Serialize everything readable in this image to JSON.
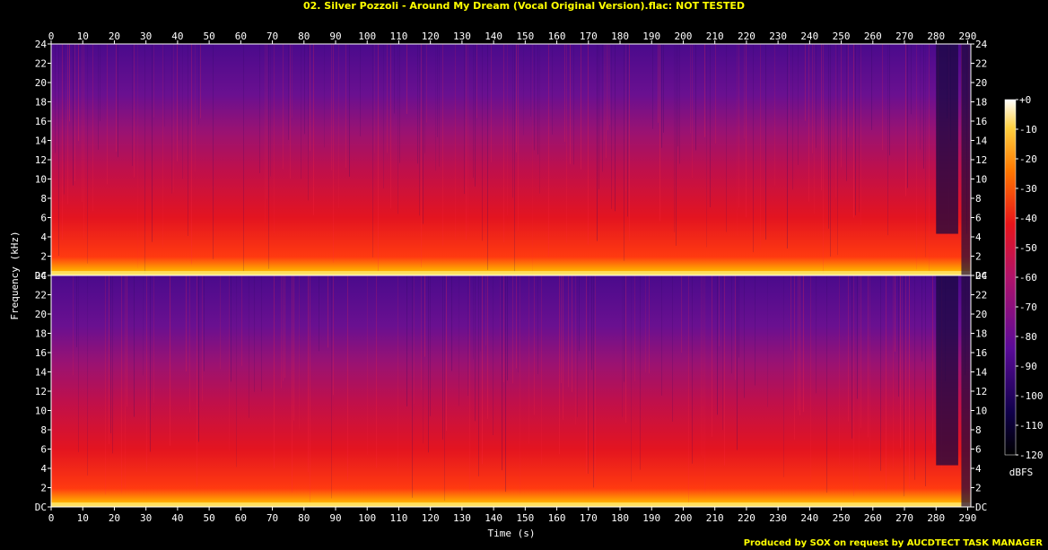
{
  "title": "02. Silver Pozzoli - Around My Dream (Vocal Original Version).flac: NOT TESTED",
  "footer": "Produced by SOX on request by AUCDTECT TASK MANAGER",
  "chart_data": {
    "type": "heatmap",
    "xlabel": "Time (s)",
    "ylabel": "Frequency (kHz)",
    "colorbar_label": "dBFS",
    "xlim": [
      0,
      291
    ],
    "ylim": [
      0,
      24
    ],
    "x_ticks": [
      0,
      10,
      20,
      30,
      40,
      50,
      60,
      70,
      80,
      90,
      100,
      110,
      120,
      130,
      140,
      150,
      160,
      170,
      180,
      190,
      200,
      210,
      220,
      230,
      240,
      250,
      260,
      270,
      280,
      290
    ],
    "y_ticks": [
      "DC",
      "2",
      "4",
      "6",
      "8",
      "10",
      "12",
      "14",
      "16",
      "18",
      "20",
      "22",
      "24"
    ],
    "colorbar_range": [
      -120,
      0
    ],
    "colorbar_ticks": [
      "+0",
      "-10",
      "-20",
      "-30",
      "-40",
      "-50",
      "-60",
      "-70",
      "-80",
      "-90",
      "-100",
      "-110",
      "-120"
    ],
    "channels": 2,
    "colors": {
      "low": "#0a0030",
      "mid_low": "#4a0a8a",
      "mid": "#a0156e",
      "mid_high": "#e0141e",
      "high": "#ff9a00",
      "peak": "#ffffe0"
    }
  }
}
